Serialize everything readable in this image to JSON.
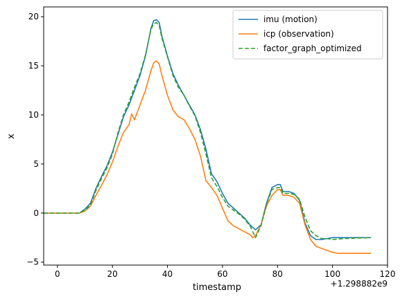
{
  "chart_data": {
    "type": "line",
    "xlabel": "timestamp",
    "ylabel": "x",
    "offset_label": "+1.298882e9",
    "xlim": [
      -5,
      120
    ],
    "ylim": [
      -5.3,
      21
    ],
    "xticks": [
      0,
      20,
      40,
      60,
      80,
      100,
      120
    ],
    "yticks": [
      -5,
      0,
      5,
      10,
      15,
      20
    ],
    "xtick_labels": [
      "0",
      "20",
      "40",
      "60",
      "80",
      "100",
      "120"
    ],
    "ytick_labels": [
      "−5",
      "0",
      "5",
      "10",
      "15",
      "20"
    ],
    "grid": false,
    "legend_position": "top-right",
    "series": [
      {
        "name": "imu (motion)",
        "color": "#1f77b4",
        "style": "solid",
        "points": [
          [
            -5,
            0
          ],
          [
            8,
            0
          ],
          [
            10,
            0.4
          ],
          [
            12,
            1
          ],
          [
            14,
            2.5
          ],
          [
            16,
            3.7
          ],
          [
            18,
            4.8
          ],
          [
            20,
            6.2
          ],
          [
            22,
            8
          ],
          [
            24,
            9.8
          ],
          [
            26,
            11
          ],
          [
            28,
            12.5
          ],
          [
            30,
            14
          ],
          [
            32,
            16
          ],
          [
            34,
            18.8
          ],
          [
            35,
            19.6
          ],
          [
            36,
            19.7
          ],
          [
            37,
            19.4
          ],
          [
            38,
            18
          ],
          [
            40,
            16
          ],
          [
            42,
            14.2
          ],
          [
            44,
            13
          ],
          [
            46,
            12
          ],
          [
            48,
            11
          ],
          [
            50,
            10
          ],
          [
            52,
            8.5
          ],
          [
            54,
            6.5
          ],
          [
            56,
            4
          ],
          [
            58,
            3.2
          ],
          [
            60,
            2
          ],
          [
            62,
            1
          ],
          [
            64,
            0.5
          ],
          [
            66,
            0
          ],
          [
            68,
            -0.5
          ],
          [
            70,
            -1.2
          ],
          [
            72,
            -1.7
          ],
          [
            74,
            -1.2
          ],
          [
            76,
            1
          ],
          [
            78,
            2.6
          ],
          [
            80,
            2.9
          ],
          [
            81,
            2.9
          ],
          [
            82,
            2.2
          ],
          [
            84,
            2.2
          ],
          [
            86,
            2
          ],
          [
            88,
            1.3
          ],
          [
            90,
            -1
          ],
          [
            92,
            -2.3
          ],
          [
            94,
            -2.7
          ],
          [
            96,
            -2.7
          ],
          [
            98,
            -2.6
          ],
          [
            100,
            -2.5
          ],
          [
            104,
            -2.5
          ],
          [
            114,
            -2.5
          ]
        ]
      },
      {
        "name": "icp (observation)",
        "color": "#ff7f0e",
        "style": "solid",
        "points": [
          [
            -5,
            0
          ],
          [
            8,
            0
          ],
          [
            10,
            0.2
          ],
          [
            12,
            0.7
          ],
          [
            14,
            1.8
          ],
          [
            16,
            2.8
          ],
          [
            18,
            3.9
          ],
          [
            20,
            5.2
          ],
          [
            22,
            6.8
          ],
          [
            24,
            8.2
          ],
          [
            26,
            9
          ],
          [
            27,
            10.1
          ],
          [
            28,
            9.5
          ],
          [
            30,
            11
          ],
          [
            32,
            12.5
          ],
          [
            34,
            14.5
          ],
          [
            35,
            15.3
          ],
          [
            36,
            15.5
          ],
          [
            37,
            15.2
          ],
          [
            38,
            14
          ],
          [
            40,
            12
          ],
          [
            42,
            10.5
          ],
          [
            44,
            9.8
          ],
          [
            46,
            9.5
          ],
          [
            48,
            8.6
          ],
          [
            50,
            7.5
          ],
          [
            52,
            5.8
          ],
          [
            54,
            3.3
          ],
          [
            56,
            2.6
          ],
          [
            58,
            1.8
          ],
          [
            60,
            0.5
          ],
          [
            62,
            -0.8
          ],
          [
            64,
            -1.3
          ],
          [
            66,
            -1.6
          ],
          [
            68,
            -1.9
          ],
          [
            70,
            -2.2
          ],
          [
            71,
            -2.5
          ],
          [
            72,
            -2.3
          ],
          [
            74,
            -1.2
          ],
          [
            76,
            0.7
          ],
          [
            78,
            1.8
          ],
          [
            80,
            2.4
          ],
          [
            81,
            2.4
          ],
          [
            82,
            1.8
          ],
          [
            84,
            1.8
          ],
          [
            86,
            1.6
          ],
          [
            88,
            1
          ],
          [
            90,
            -1.2
          ],
          [
            92,
            -2.7
          ],
          [
            94,
            -3.4
          ],
          [
            96,
            -3.6
          ],
          [
            98,
            -3.8
          ],
          [
            100,
            -4
          ],
          [
            102,
            -4.1
          ],
          [
            114,
            -4.1
          ]
        ]
      },
      {
        "name": "factor_graph_optimized",
        "color": "#2ca02c",
        "style": "dashed",
        "points": [
          [
            -5,
            0
          ],
          [
            8,
            0
          ],
          [
            10,
            0.3
          ],
          [
            12,
            0.8
          ],
          [
            14,
            2.3
          ],
          [
            16,
            3.5
          ],
          [
            18,
            4.6
          ],
          [
            20,
            6
          ],
          [
            22,
            8.2
          ],
          [
            24,
            10
          ],
          [
            26,
            11.3
          ],
          [
            28,
            12.8
          ],
          [
            30,
            14.2
          ],
          [
            32,
            16.1
          ],
          [
            34,
            18.7
          ],
          [
            35,
            19.3
          ],
          [
            36,
            19.4
          ],
          [
            37,
            19.1
          ],
          [
            38,
            17.8
          ],
          [
            40,
            15.9
          ],
          [
            42,
            14
          ],
          [
            44,
            12.8
          ],
          [
            46,
            12
          ],
          [
            48,
            10.9
          ],
          [
            50,
            9.9
          ],
          [
            52,
            8.2
          ],
          [
            54,
            6
          ],
          [
            56,
            3.6
          ],
          [
            58,
            2.7
          ],
          [
            60,
            1.6
          ],
          [
            62,
            0.7
          ],
          [
            64,
            0.3
          ],
          [
            66,
            -0.1
          ],
          [
            68,
            -0.6
          ],
          [
            70,
            -1.3
          ],
          [
            72,
            -2.5
          ],
          [
            74,
            -1.3
          ],
          [
            76,
            0.9
          ],
          [
            78,
            2.4
          ],
          [
            80,
            2.6
          ],
          [
            81,
            2.6
          ],
          [
            82,
            2
          ],
          [
            84,
            2
          ],
          [
            86,
            1.9
          ],
          [
            88,
            1.4
          ],
          [
            90,
            -0.4
          ],
          [
            92,
            -1.8
          ],
          [
            94,
            -2.3
          ],
          [
            96,
            -2.6
          ],
          [
            98,
            -2.6
          ],
          [
            100,
            -2.7
          ],
          [
            104,
            -2.6
          ],
          [
            114,
            -2.5
          ]
        ]
      }
    ]
  }
}
